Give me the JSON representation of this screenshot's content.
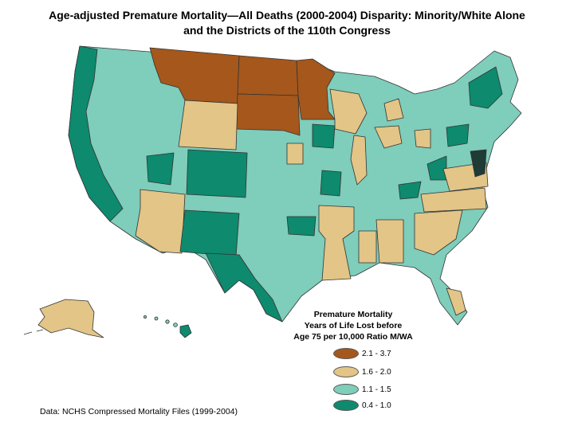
{
  "title_line1": "Age-adjusted Premature Mortality—All Deaths (2000-2004) Disparity:  Minority/White Alone",
  "title_line2": "and the Districts of the 110th Congress",
  "legend": {
    "title_line1": "Premature Mortality",
    "title_line2": "Years of Life Lost before",
    "title_line3": "Age 75 per 10,000 Ratio M/WA",
    "items": [
      {
        "label": "2.1 - 3.7",
        "color": "#a5571c"
      },
      {
        "label": "1.6 - 2.0",
        "color": "#e2c587"
      },
      {
        "label": "1.1 - 1.5",
        "color": "#7fcdbb"
      },
      {
        "label": "0.4 - 1.0",
        "color": "#0e8a6e"
      }
    ]
  },
  "source": "Data:  NCHS Compressed Mortality Files (1999-2004)"
}
